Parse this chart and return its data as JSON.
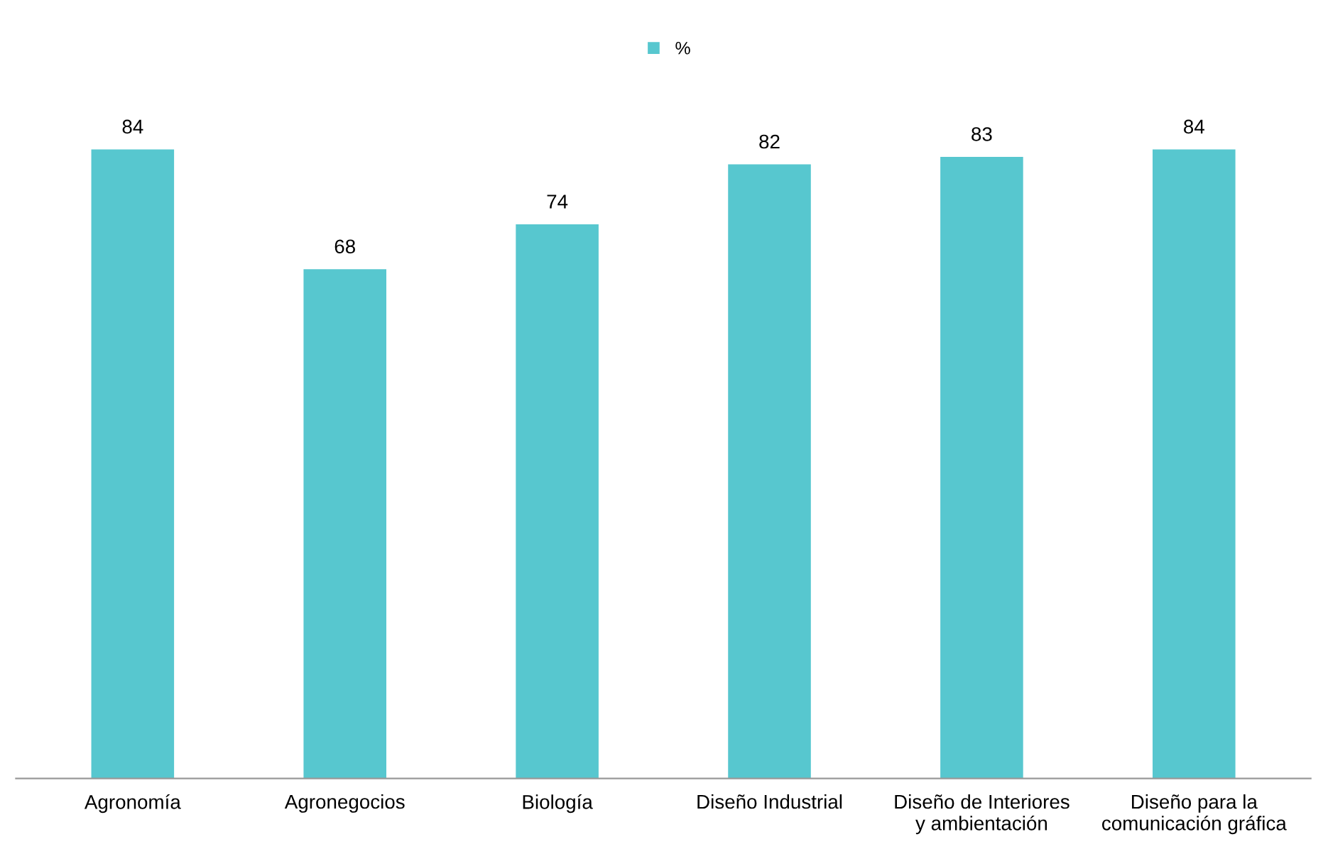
{
  "chart_data": {
    "type": "bar",
    "categories": [
      "Agronomía",
      "Agronegocios",
      "Biología",
      "Diseño Industrial",
      "Diseño de Interiores\ny ambientación",
      "Diseño para la\ncomunicación gráfica"
    ],
    "series": [
      {
        "name": "%",
        "color": "#57c7cf",
        "values": [
          84,
          68,
          74,
          82,
          83,
          84
        ]
      }
    ],
    "data_labels": true,
    "legend": "top",
    "grid": false
  }
}
